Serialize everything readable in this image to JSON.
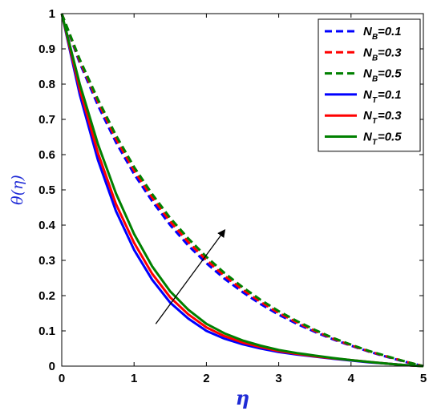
{
  "chart_data": {
    "type": "line",
    "xlabel": "η",
    "ylabel": "θ(η)",
    "xlim": [
      0,
      5
    ],
    "ylim": [
      0,
      1
    ],
    "xticks": [
      "0",
      "1",
      "2",
      "3",
      "4",
      "5"
    ],
    "yticks": [
      "0",
      "0.1",
      "0.2",
      "0.3",
      "0.4",
      "0.5",
      "0.6",
      "0.7",
      "0.8",
      "0.9",
      "1"
    ],
    "grid": false,
    "legend_position": "top-right",
    "x": [
      0,
      0.25,
      0.5,
      0.75,
      1,
      1.25,
      1.5,
      1.75,
      2,
      2.25,
      2.5,
      2.75,
      3,
      3.25,
      3.5,
      3.75,
      4,
      4.25,
      4.5,
      4.75,
      5
    ],
    "series": [
      {
        "name_main": "N",
        "name_sub": "B",
        "name_rest": "=0.1",
        "color": "#0000ff",
        "dash": "dashed",
        "values": [
          1,
          0.86,
          0.74,
          0.635,
          0.545,
          0.468,
          0.4,
          0.342,
          0.292,
          0.248,
          0.21,
          0.176,
          0.146,
          0.12,
          0.097,
          0.076,
          0.058,
          0.041,
          0.026,
          0.012,
          0
        ]
      },
      {
        "name_main": "N",
        "name_sub": "B",
        "name_rest": "=0.3",
        "color": "#ff0000",
        "dash": "dashed",
        "values": [
          1,
          0.865,
          0.75,
          0.645,
          0.555,
          0.478,
          0.41,
          0.352,
          0.301,
          0.256,
          0.217,
          0.182,
          0.151,
          0.124,
          0.1,
          0.078,
          0.059,
          0.042,
          0.027,
          0.013,
          0
        ]
      },
      {
        "name_main": "N",
        "name_sub": "B",
        "name_rest": "=0.5",
        "color": "#008000",
        "dash": "dashed",
        "values": [
          1,
          0.87,
          0.757,
          0.655,
          0.565,
          0.488,
          0.42,
          0.362,
          0.31,
          0.264,
          0.224,
          0.188,
          0.156,
          0.128,
          0.103,
          0.08,
          0.061,
          0.043,
          0.028,
          0.013,
          0
        ]
      },
      {
        "name_main": "N",
        "name_sub": "T",
        "name_rest": "=0.1",
        "color": "#0000ff",
        "dash": "solid",
        "values": [
          1,
          0.77,
          0.585,
          0.44,
          0.33,
          0.245,
          0.18,
          0.135,
          0.1,
          0.078,
          0.062,
          0.05,
          0.04,
          0.033,
          0.027,
          0.021,
          0.016,
          0.011,
          0.007,
          0.003,
          0
        ]
      },
      {
        "name_main": "N",
        "name_sub": "T",
        "name_rest": "=0.3",
        "color": "#ff0000",
        "dash": "solid",
        "values": [
          1,
          0.785,
          0.605,
          0.46,
          0.35,
          0.262,
          0.195,
          0.147,
          0.11,
          0.085,
          0.067,
          0.054,
          0.043,
          0.035,
          0.028,
          0.022,
          0.017,
          0.012,
          0.007,
          0.003,
          0
        ]
      },
      {
        "name_main": "N",
        "name_sub": "T",
        "name_rest": "=0.5",
        "color": "#008000",
        "dash": "solid",
        "values": [
          1,
          0.8,
          0.63,
          0.49,
          0.375,
          0.283,
          0.212,
          0.16,
          0.12,
          0.093,
          0.073,
          0.058,
          0.046,
          0.037,
          0.03,
          0.023,
          0.017,
          0.012,
          0.007,
          0.003,
          0
        ]
      }
    ],
    "annotations": [
      {
        "type": "arrow",
        "from": [
          1.3,
          0.12
        ],
        "to": [
          2.25,
          0.385
        ],
        "color": "#000000"
      }
    ]
  }
}
